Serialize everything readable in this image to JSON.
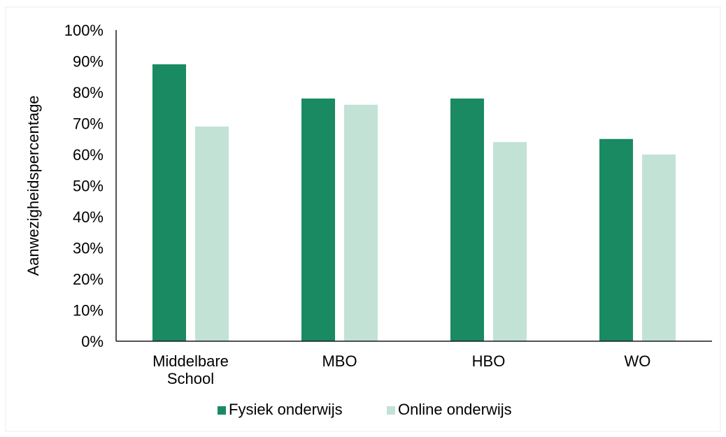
{
  "chart_data": {
    "type": "bar",
    "title": "",
    "xlabel": "",
    "ylabel": "Aanwezigheidspercentage",
    "ylim": [
      0,
      100
    ],
    "y_ticks": [
      "0%",
      "10%",
      "20%",
      "30%",
      "40%",
      "50%",
      "60%",
      "70%",
      "80%",
      "90%",
      "100%"
    ],
    "categories": [
      [
        "Middelbare",
        "School"
      ],
      [
        "MBO"
      ],
      [
        "HBO"
      ],
      [
        "WO"
      ]
    ],
    "series": [
      {
        "name": "Fysiek onderwijs",
        "color": "#1a8a63",
        "values": [
          89,
          78,
          78,
          65
        ]
      },
      {
        "name": "Online onderwijs",
        "color": "#c2e2d6",
        "values": [
          69,
          76,
          64,
          60
        ]
      }
    ],
    "grid": false,
    "legend_position": "bottom-center"
  }
}
